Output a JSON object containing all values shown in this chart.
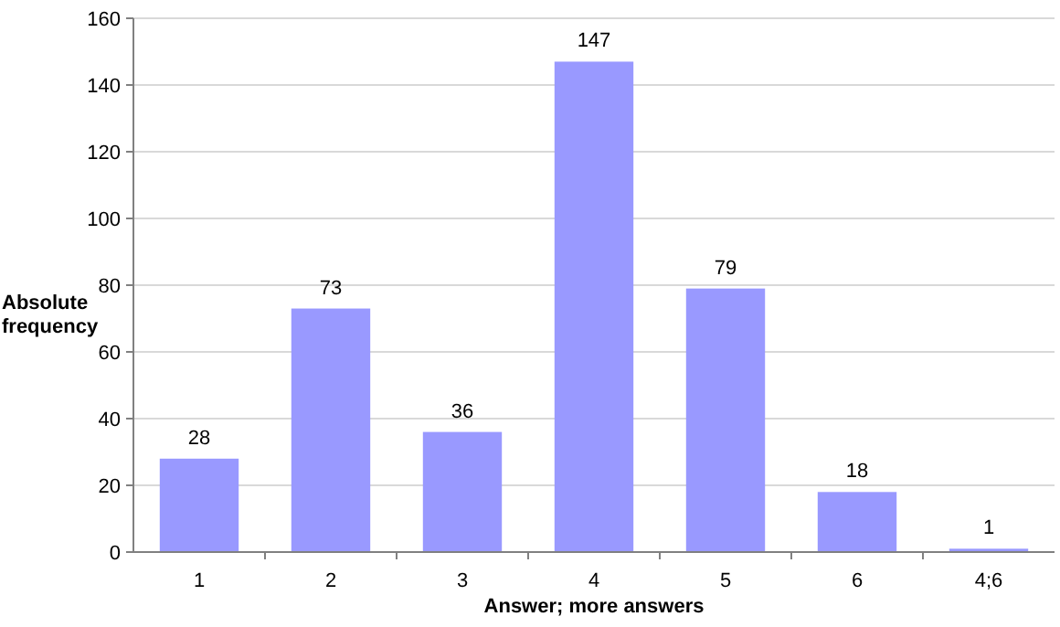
{
  "chart_data": {
    "type": "bar",
    "xlabel": "Answer; more answers",
    "ylabel": "Absolute frequency",
    "categories": [
      "1",
      "2",
      "3",
      "4",
      "5",
      "6",
      "4;6"
    ],
    "values": [
      28,
      73,
      36,
      147,
      79,
      18,
      1
    ],
    "color": "#9999ff",
    "ylim": [
      0,
      160
    ],
    "yticks": [
      0,
      20,
      40,
      60,
      80,
      100,
      120,
      140,
      160
    ],
    "grid": "y",
    "data_labels": true
  }
}
